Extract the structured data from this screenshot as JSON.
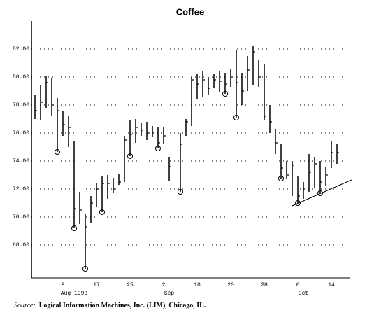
{
  "chart_data": {
    "type": "hlc",
    "title": "Coffee",
    "categories": [
      null,
      null,
      null,
      null,
      null,
      "9",
      null,
      null,
      null,
      null,
      null,
      "17",
      null,
      null,
      null,
      null,
      null,
      "25",
      null,
      null,
      null,
      null,
      null,
      "2",
      null,
      null,
      null,
      null,
      null,
      "10",
      null,
      null,
      null,
      null,
      null,
      "20",
      null,
      null,
      null,
      null,
      null,
      "28",
      null,
      null,
      null,
      null,
      null,
      "6",
      null,
      null,
      null,
      null,
      null,
      "14",
      null
    ],
    "month_labels": [
      {
        "label": "Aug 1993",
        "category": 7
      },
      {
        "label": "Sep",
        "category": 24
      },
      {
        "label": "Oct",
        "category": 48
      }
    ],
    "high": [
      78.7,
      79.4,
      80.1,
      79.9,
      78.5,
      77.6,
      77.2,
      75.4,
      71.8,
      70.2,
      71.5,
      72.4,
      72.9,
      73.0,
      72.8,
      73.1,
      75.8,
      76.9,
      77.0,
      76.7,
      76.8,
      76.5,
      76.4,
      76.4,
      74.3,
      null,
      76.0,
      77.0,
      80.0,
      80.2,
      80.4,
      80.0,
      80.2,
      80.4,
      80.3,
      80.6,
      81.9,
      80.3,
      81.5,
      82.2,
      81.2,
      80.9,
      78.0,
      76.3,
      75.2,
      74.0,
      74.0,
      72.9,
      72.5,
      74.5,
      74.3,
      74.0,
      73.6,
      75.4,
      75.2
    ],
    "low": [
      77.0,
      76.9,
      77.8,
      77.2,
      74.65,
      75.8,
      75.0,
      69.2,
      69.5,
      66.3,
      69.6,
      70.7,
      70.35,
      71.3,
      71.7,
      72.3,
      72.5,
      74.35,
      75.3,
      75.8,
      75.5,
      75.7,
      74.9,
      75.2,
      72.6,
      null,
      71.8,
      75.8,
      76.5,
      78.4,
      78.6,
      78.7,
      79.2,
      78.9,
      78.8,
      79.3,
      77.1,
      78.0,
      79.0,
      79.4,
      79.3,
      76.9,
      76.0,
      74.5,
      72.75,
      72.7,
      71.5,
      71.0,
      71.3,
      71.8,
      72.1,
      71.7,
      72.2,
      73.5,
      73.8
    ],
    "close": [
      77.6,
      78.2,
      79.6,
      78.0,
      77.6,
      76.6,
      76.4,
      70.6,
      70.5,
      69.3,
      71.0,
      72.0,
      72.4,
      72.4,
      72.0,
      72.5,
      75.5,
      75.9,
      76.4,
      76.2,
      76.0,
      76.0,
      75.3,
      75.8,
      73.6,
      null,
      75.2,
      76.8,
      79.8,
      79.5,
      79.8,
      79.2,
      79.8,
      79.7,
      79.5,
      80.0,
      79.6,
      79.0,
      80.5,
      81.8,
      80.0,
      77.2,
      76.8,
      75.3,
      73.5,
      73.0,
      73.7,
      71.5,
      72.0,
      73.2,
      73.8,
      72.5,
      73.0,
      74.6,
      74.6
    ],
    "markers": [
      null,
      null,
      null,
      null,
      74.65,
      null,
      null,
      69.2,
      null,
      66.3,
      null,
      null,
      70.35,
      null,
      null,
      null,
      null,
      74.35,
      null,
      null,
      null,
      null,
      74.9,
      null,
      null,
      null,
      71.8,
      null,
      null,
      null,
      null,
      null,
      null,
      null,
      78.8,
      null,
      77.1,
      null,
      null,
      null,
      null,
      null,
      null,
      null,
      72.75,
      null,
      null,
      71.0,
      null,
      null,
      null,
      71.7,
      null,
      null,
      null
    ],
    "trendline": {
      "x": [
        46,
        56.6
      ],
      "y": [
        70.8,
        72.65
      ]
    },
    "ylim": [
      65.65,
      84
    ],
    "yticks": [
      {
        "value": 68,
        "label": "68.00"
      },
      {
        "value": 70,
        "label": "70.00"
      },
      {
        "value": 72,
        "label": "72.00"
      },
      {
        "value": 74,
        "label": "74.00"
      },
      {
        "value": 76,
        "label": "76.00"
      },
      {
        "value": 78,
        "label": "78.00"
      },
      {
        "value": 80,
        "label": "80.00"
      },
      {
        "value": 82,
        "label": "82.00"
      }
    ],
    "grid": true,
    "color": "#000000",
    "source_label": "Source:",
    "source_text": "Logical Information Machines, Inc. (LIM), Chicago, IL."
  }
}
